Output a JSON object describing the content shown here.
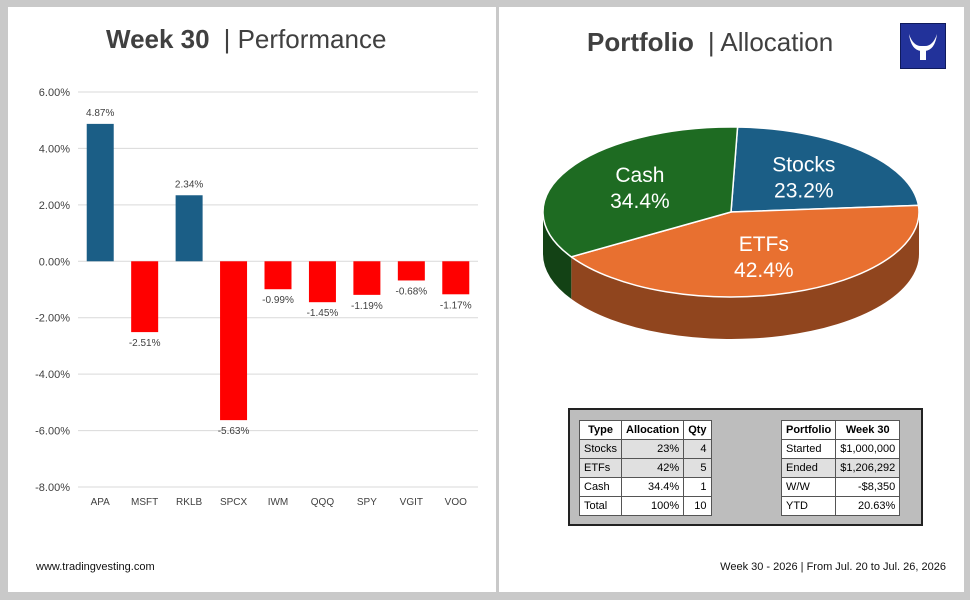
{
  "performance": {
    "title_bold": "Week 30",
    "title_rest": "Performance",
    "chart_data": {
      "type": "bar",
      "categories": [
        "APA",
        "MSFT",
        "RKLB",
        "SPCX",
        "IWM",
        "QQQ",
        "SPY",
        "VGIT",
        "VOO"
      ],
      "values": [
        4.87,
        -2.51,
        2.34,
        -5.63,
        -0.99,
        -1.45,
        -1.19,
        -0.68,
        -1.17
      ],
      "value_labels": [
        "4.87%",
        "-2.51%",
        "2.34%",
        "-5.63%",
        "-0.99%",
        "-1.45%",
        "-1.19%",
        "-0.68%",
        "-1.17%"
      ],
      "ylim": [
        -8,
        6
      ],
      "yticks": [
        6,
        4,
        2,
        0,
        -2,
        -4,
        -6,
        -8
      ],
      "ytick_labels": [
        "6.00%",
        "4.00%",
        "2.00%",
        "0.00%",
        "-2.00%",
        "-4.00%",
        "-6.00%",
        "-8.00%"
      ],
      "grid": true,
      "colors": {
        "positive": "#1b5e86",
        "negative": "#ff0000"
      }
    }
  },
  "allocation": {
    "title_bold": "Portfolio",
    "title_rest": "Allocation",
    "chart_data": {
      "type": "pie",
      "slices": [
        {
          "label": "Stocks",
          "value": 23.2,
          "text": "23.2%",
          "color": "#1b5e86"
        },
        {
          "label": "ETFs",
          "value": 42.4,
          "text": "42.4%",
          "color": "#e87030"
        },
        {
          "label": "Cash",
          "value": 34.4,
          "text": "34.4%",
          "color": "#1e6b22"
        }
      ]
    }
  },
  "allocation_table": {
    "headers": [
      "Type",
      "Allocation",
      "Qty"
    ],
    "rows": [
      [
        "Stocks",
        "23%",
        "4"
      ],
      [
        "ETFs",
        "42%",
        "5"
      ],
      [
        "Cash",
        "34.4%",
        "1"
      ],
      [
        "Total",
        "100%",
        "10"
      ]
    ]
  },
  "portfolio_table": {
    "headers": [
      "Portfolio",
      "Week 30"
    ],
    "rows": [
      [
        "Started",
        "$1,000,000"
      ],
      [
        "Ended",
        "$1,206,292"
      ],
      [
        "W/W",
        "-$8,350"
      ],
      [
        "YTD",
        "20.63%"
      ]
    ]
  },
  "footer": {
    "site": "www.tradingvesting.com",
    "range": "Week 30 - 2026 | From Jul. 20 to Jul. 26, 2026"
  },
  "logo_icon": "bull-horns-icon"
}
